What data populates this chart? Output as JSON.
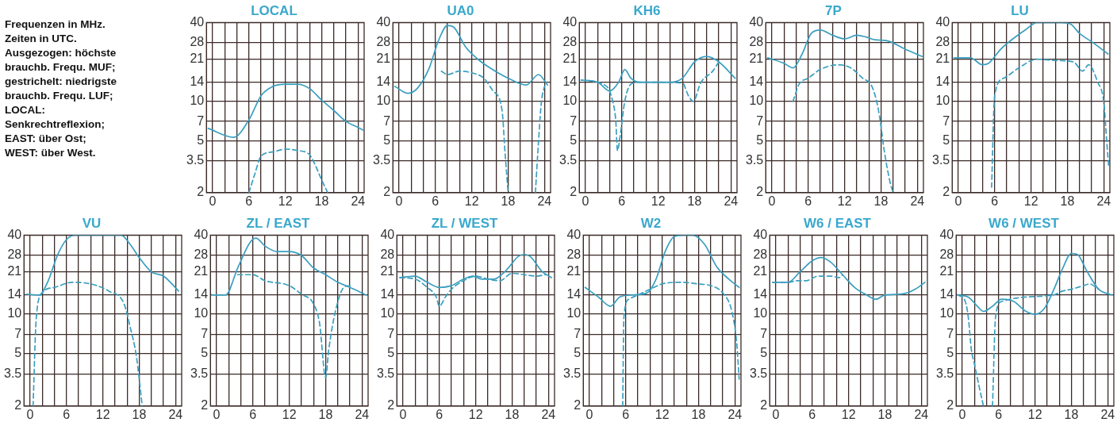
{
  "chart_data": [
    {
      "type": "other",
      "annotations": [
        "Frequenzen in MHz.",
        "Zeiten in UTC.",
        "Ausgezogen: höchste",
        "brauchb. Frequ. MUF;",
        "gestrichelt: niedrigste",
        "brauchb. Frequ. LUF;",
        "LOCAL:",
        "Senkrechtreflexion;",
        "EAST: über Ost;",
        "WEST: über West."
      ]
    },
    {
      "type": "line",
      "title": "LOCAL",
      "log": true,
      "grid": true,
      "marker": "none",
      "xlim": [
        -1,
        25
      ],
      "ylim": [
        2,
        40
      ],
      "xticks": [
        0,
        {
          "value": 2,
          "label": null
        },
        {
          "value": 4,
          "label": null
        },
        6,
        {
          "value": 8,
          "label": null
        },
        {
          "value": 10,
          "label": null
        },
        12,
        {
          "value": 14,
          "label": null
        },
        {
          "value": 16,
          "label": null
        },
        18,
        {
          "value": 20,
          "label": null
        },
        {
          "value": 22,
          "label": null
        },
        24
      ],
      "yticks": [
        2,
        3.5,
        5,
        7,
        10,
        14,
        21,
        28,
        40
      ],
      "series": [
        {
          "color": "#3a9fbf",
          "line_style": "solid",
          "x": [
            -0.7,
            3.5,
            6,
            8,
            10,
            12,
            14,
            16,
            18,
            20,
            22,
            24,
            24.9
          ],
          "values": [
            6.2,
            5.3,
            7.2,
            11,
            13,
            13.5,
            13.5,
            12.5,
            10.2,
            8.5,
            7,
            6.3,
            6
          ]
        },
        {
          "color": "#3a9fbf",
          "line_style": "dashed",
          "x": [
            6,
            7,
            8,
            10,
            12,
            14,
            16,
            17,
            18,
            19
          ],
          "values": [
            2,
            2.8,
            3.8,
            4.1,
            4.3,
            4.2,
            3.9,
            3.2,
            2.5,
            2
          ]
        }
      ]
    },
    {
      "type": "line",
      "title": "UA0",
      "log": true,
      "grid": true,
      "marker": "none",
      "xlim": [
        -1,
        25
      ],
      "ylim": [
        2,
        40
      ],
      "xticks": [
        0,
        {
          "value": 2,
          "label": null
        },
        {
          "value": 4,
          "label": null
        },
        6,
        {
          "value": 8,
          "label": null
        },
        {
          "value": 10,
          "label": null
        },
        12,
        {
          "value": 14,
          "label": null
        },
        {
          "value": 16,
          "label": null
        },
        18,
        {
          "value": 20,
          "label": null
        },
        {
          "value": 22,
          "label": null
        },
        24
      ],
      "yticks": [
        2,
        3.5,
        5,
        7,
        10,
        14,
        21,
        28,
        40
      ],
      "series": [
        {
          "color": "#3a9fbf",
          "line_style": "solid",
          "x": [
            -0.7,
            1.5,
            3,
            5,
            6.5,
            8,
            9,
            11,
            13,
            15,
            18,
            21,
            23,
            24.5
          ],
          "values": [
            13,
            11.5,
            12.5,
            18,
            29,
            38,
            37,
            26,
            21,
            18,
            15,
            13.3,
            16,
            13.3
          ]
        },
        {
          "color": "#3a9fbf",
          "line_style": "dashed",
          "x": [
            7,
            8,
            10,
            12,
            14,
            15.5,
            17,
            17.5,
            18,
            20,
            22.5,
            23,
            23.5,
            24
          ],
          "values": [
            17,
            16,
            17,
            16.5,
            15,
            12,
            8.5,
            4,
            2,
            null,
            2,
            4.8,
            10,
            13
          ]
        }
      ]
    },
    {
      "type": "line",
      "title": "KH6",
      "log": true,
      "grid": true,
      "marker": "none",
      "xlim": [
        -1,
        25
      ],
      "ylim": [
        2,
        40
      ],
      "xticks": [
        0,
        {
          "value": 2,
          "label": null
        },
        {
          "value": 4,
          "label": null
        },
        6,
        {
          "value": 8,
          "label": null
        },
        {
          "value": 10,
          "label": null
        },
        12,
        {
          "value": 14,
          "label": null
        },
        {
          "value": 16,
          "label": null
        },
        18,
        {
          "value": 20,
          "label": null
        },
        {
          "value": 22,
          "label": null
        },
        24
      ],
      "yticks": [
        2,
        3.5,
        5,
        7,
        10,
        14,
        21,
        28,
        40
      ],
      "series": [
        {
          "color": "#3a9fbf",
          "line_style": "solid",
          "x": [
            -0.7,
            2,
            4,
            5.5,
            6.5,
            7.5,
            9,
            14,
            16,
            18,
            20,
            22,
            24.7
          ],
          "values": [
            14.5,
            14,
            12,
            14,
            17.5,
            15,
            14,
            14,
            15,
            20,
            22,
            20,
            15
          ]
        },
        {
          "color": "#3a9fbf",
          "line_style": "dashed",
          "x": [
            -0.7,
            3.5,
            4.5,
            5,
            5.3,
            5.7,
            6.5,
            7.5,
            9,
            16,
            17,
            17.8,
            19,
            21,
            22
          ],
          "values": [
            14.5,
            13,
            10,
            7.2,
            4.2,
            5.3,
            10,
            13.5,
            14,
            13.8,
            11,
            10,
            13.8,
            17,
            20
          ]
        }
      ]
    },
    {
      "type": "line",
      "title": "7P",
      "log": true,
      "grid": true,
      "marker": "none",
      "xlim": [
        -1,
        25
      ],
      "ylim": [
        2,
        40
      ],
      "xticks": [
        0,
        {
          "value": 2,
          "label": null
        },
        {
          "value": 4,
          "label": null
        },
        6,
        {
          "value": 8,
          "label": null
        },
        {
          "value": 10,
          "label": null
        },
        12,
        {
          "value": 14,
          "label": null
        },
        {
          "value": 16,
          "label": null
        },
        18,
        {
          "value": 20,
          "label": null
        },
        {
          "value": 22,
          "label": null
        },
        24
      ],
      "yticks": [
        2,
        3.5,
        5,
        7,
        10,
        14,
        21,
        28,
        40
      ],
      "series": [
        {
          "color": "#3a9fbf",
          "line_style": "solid",
          "x": [
            -0.7,
            2,
            3.5,
            5,
            6.5,
            8,
            10,
            12,
            14,
            15.5,
            17,
            19,
            22,
            24.8
          ],
          "values": [
            21.5,
            19.5,
            18,
            23,
            33,
            35,
            32,
            30,
            32,
            31,
            29.5,
            29,
            25,
            22
          ]
        },
        {
          "color": "#3a9fbf",
          "line_style": "dashed",
          "x": [
            3.5,
            4.5,
            6,
            8,
            11,
            13,
            15,
            16.5,
            17.5,
            18,
            18.5,
            19.5,
            20
          ],
          "values": [
            10,
            13.5,
            15,
            17.5,
            19,
            18,
            15,
            13,
            9,
            6.4,
            4.3,
            2.4,
            2
          ]
        }
      ]
    },
    {
      "type": "line",
      "title": "LU",
      "log": true,
      "grid": true,
      "marker": "none",
      "xlim": [
        -1,
        25
      ],
      "ylim": [
        2,
        40
      ],
      "xticks": [
        0,
        {
          "value": 2,
          "label": null
        },
        {
          "value": 4,
          "label": null
        },
        6,
        {
          "value": 8,
          "label": null
        },
        {
          "value": 10,
          "label": null
        },
        12,
        {
          "value": 14,
          "label": null
        },
        {
          "value": 16,
          "label": null
        },
        18,
        {
          "value": 20,
          "label": null
        },
        {
          "value": 22,
          "label": null
        },
        24
      ],
      "yticks": [
        2,
        3.5,
        5,
        7,
        10,
        14,
        21,
        28,
        40
      ],
      "series": [
        {
          "color": "#3a9fbf",
          "line_style": "solid",
          "x": [
            -0.7,
            2,
            4,
            5,
            7,
            9,
            11,
            13,
            15,
            17,
            18.5,
            20,
            22,
            24.7
          ],
          "values": [
            21.5,
            21.5,
            19,
            19.5,
            25,
            30,
            35,
            40,
            40,
            40,
            39,
            33,
            28.5,
            23
          ]
        },
        {
          "color": "#3a9fbf",
          "line_style": "dashed",
          "x": [
            5.5,
            6,
            7.5,
            10,
            13,
            16,
            19,
            20.5,
            21.5,
            23,
            24,
            24.5,
            24.8
          ],
          "values": [
            2.2,
            11,
            15,
            18,
            21,
            20.5,
            20,
            17,
            19,
            14,
            9.8,
            4.8,
            3.2
          ]
        }
      ]
    },
    {
      "type": "line",
      "title": "VU",
      "log": true,
      "grid": true,
      "marker": "none",
      "xlim": [
        -1,
        25
      ],
      "ylim": [
        2,
        40
      ],
      "xticks": [
        0,
        {
          "value": 2,
          "label": null
        },
        {
          "value": 4,
          "label": null
        },
        6,
        {
          "value": 8,
          "label": null
        },
        {
          "value": 10,
          "label": null
        },
        12,
        {
          "value": 14,
          "label": null
        },
        {
          "value": 16,
          "label": null
        },
        18,
        {
          "value": 20,
          "label": null
        },
        {
          "value": 22,
          "label": null
        },
        24
      ],
      "yticks": [
        2,
        3.5,
        5,
        7,
        10,
        14,
        21,
        28,
        40
      ],
      "series": [
        {
          "color": "#3a9fbf",
          "line_style": "solid",
          "x": [
            -0.5,
            1.5,
            3,
            4.5,
            6,
            7.5,
            9,
            12,
            15,
            16.5,
            18,
            20,
            22,
            24.5
          ],
          "values": [
            14.2,
            14,
            18,
            28,
            37,
            40,
            40,
            40,
            40,
            34,
            27,
            21,
            19.5,
            15
          ]
        },
        {
          "color": "#3a9fbf",
          "line_style": "dashed",
          "x": [
            0.5,
            1,
            2,
            4,
            7,
            10,
            13,
            15.5,
            16.5,
            17.5,
            18.5
          ],
          "values": [
            2,
            9,
            14.5,
            16,
            17.5,
            17,
            15,
            12,
            8,
            4.9,
            2
          ]
        }
      ]
    },
    {
      "type": "line",
      "title": "ZL / EAST",
      "log": true,
      "grid": true,
      "marker": "none",
      "xlim": [
        -1,
        25
      ],
      "ylim": [
        2,
        40
      ],
      "xticks": [
        0,
        {
          "value": 2,
          "label": null
        },
        {
          "value": 4,
          "label": null
        },
        6,
        {
          "value": 8,
          "label": null
        },
        {
          "value": 10,
          "label": null
        },
        12,
        {
          "value": 14,
          "label": null
        },
        {
          "value": 16,
          "label": null
        },
        18,
        {
          "value": 20,
          "label": null
        },
        {
          "value": 22,
          "label": null
        },
        24
      ],
      "yticks": [
        2,
        3.5,
        5,
        7,
        10,
        14,
        21,
        28,
        40
      ],
      "series": [
        {
          "color": "#3a9fbf",
          "line_style": "solid",
          "x": [
            -0.7,
            1.5,
            3.5,
            5.5,
            6.5,
            8,
            10,
            12,
            14,
            16,
            18,
            20,
            22,
            24.7
          ],
          "values": [
            14,
            14,
            22.5,
            35,
            38,
            33,
            30,
            30,
            28,
            22.5,
            20,
            17.5,
            16,
            14
          ]
        },
        {
          "color": "#3a9fbf",
          "line_style": "dashed",
          "x": [
            3.5,
            6,
            8,
            12,
            14,
            16,
            17,
            18,
            18.5,
            19.5,
            21,
            22
          ],
          "values": [
            20,
            20,
            18,
            16.5,
            14.2,
            12,
            8.5,
            3.3,
            5.3,
            10,
            16,
            16.5
          ]
        }
      ]
    },
    {
      "type": "line",
      "title": "ZL / WEST",
      "log": true,
      "grid": true,
      "marker": "none",
      "xlim": [
        -1,
        25
      ],
      "ylim": [
        2,
        40
      ],
      "xticks": [
        0,
        {
          "value": 2,
          "label": null
        },
        {
          "value": 4,
          "label": null
        },
        6,
        {
          "value": 8,
          "label": null
        },
        {
          "value": 10,
          "label": null
        },
        12,
        {
          "value": 14,
          "label": null
        },
        {
          "value": 16,
          "label": null
        },
        18,
        {
          "value": 20,
          "label": null
        },
        {
          "value": 22,
          "label": null
        },
        24
      ],
      "yticks": [
        2,
        3.5,
        5,
        7,
        10,
        14,
        21,
        28,
        40
      ],
      "series": [
        {
          "color": "#3a9fbf",
          "line_style": "solid",
          "x": [
            -0.5,
            2,
            4,
            6,
            8,
            10,
            11.5,
            13,
            15,
            17,
            19,
            20,
            21,
            23,
            24.5
          ],
          "values": [
            19,
            19.5,
            17.5,
            16,
            16.5,
            18.5,
            19.5,
            18.5,
            18.5,
            21.5,
            27.5,
            28.5,
            27.5,
            21,
            19
          ]
        },
        {
          "color": "#3a9fbf",
          "line_style": "dashed",
          "x": [
            -0.5,
            2,
            4,
            5.5,
            6,
            7,
            8,
            10,
            12,
            14,
            16,
            18,
            20,
            22,
            23.5
          ],
          "values": [
            19,
            18.5,
            16,
            13.5,
            11.5,
            13.5,
            15.5,
            18,
            19.5,
            18.5,
            18,
            20.5,
            20,
            19.5,
            20
          ]
        }
      ]
    },
    {
      "type": "line",
      "title": "W2",
      "log": true,
      "grid": true,
      "marker": "none",
      "xlim": [
        -1,
        25
      ],
      "ylim": [
        2,
        40
      ],
      "xticks": [
        0,
        {
          "value": 2,
          "label": null
        },
        {
          "value": 4,
          "label": null
        },
        6,
        {
          "value": 8,
          "label": null
        },
        {
          "value": 10,
          "label": null
        },
        12,
        {
          "value": 14,
          "label": null
        },
        {
          "value": 16,
          "label": null
        },
        18,
        {
          "value": 20,
          "label": null
        },
        {
          "value": 22,
          "label": null
        },
        24
      ],
      "yticks": [
        2,
        3.5,
        5,
        7,
        10,
        14,
        21,
        28,
        40
      ],
      "series": [
        {
          "color": "#3a9fbf",
          "line_style": "solid",
          "x": [
            -0.7,
            1.5,
            3.5,
            5,
            7,
            9.5,
            11,
            12.5,
            14,
            15.5,
            17,
            19,
            21,
            23,
            24.7
          ],
          "values": [
            16,
            13.5,
            11.5,
            13.5,
            14,
            14.5,
            18.5,
            30,
            39,
            40,
            40,
            34,
            23,
            18.5,
            16
          ]
        },
        {
          "color": "#3a9fbf",
          "line_style": "dashed",
          "x": [
            5.5,
            5.7,
            6.5,
            8,
            10,
            12,
            15,
            18,
            20,
            22,
            23.5,
            24.3,
            24.7
          ],
          "values": [
            2,
            9.5,
            13,
            14,
            15.5,
            17,
            17.5,
            17,
            16.5,
            14.5,
            10.5,
            6,
            3.2
          ]
        }
      ]
    },
    {
      "type": "line",
      "title": "W6 / EAST",
      "log": true,
      "grid": true,
      "marker": "none",
      "xlim": [
        -1,
        25
      ],
      "ylim": [
        2,
        40
      ],
      "xticks": [
        0,
        {
          "value": 2,
          "label": null
        },
        {
          "value": 4,
          "label": null
        },
        6,
        {
          "value": 8,
          "label": null
        },
        {
          "value": 10,
          "label": null
        },
        12,
        {
          "value": 14,
          "label": null
        },
        {
          "value": 16,
          "label": null
        },
        18,
        {
          "value": 20,
          "label": null
        },
        {
          "value": 22,
          "label": null
        },
        24
      ],
      "yticks": [
        2,
        3.5,
        5,
        7,
        10,
        14,
        21,
        28,
        40
      ],
      "series": [
        {
          "color": "#3a9fbf",
          "line_style": "solid",
          "x": [
            -0.5,
            2,
            4,
            6,
            7.5,
            9,
            11,
            13,
            15,
            16.5,
            18,
            21,
            23,
            24.6
          ],
          "values": [
            17.5,
            17.5,
            21,
            25.5,
            27,
            25,
            20,
            16,
            14,
            13,
            14,
            14.3,
            15.5,
            17.5
          ]
        },
        {
          "color": "#3a9fbf",
          "line_style": "dashed",
          "x": [
            -0.5,
            2,
            3.5,
            5,
            7,
            9,
            10.5,
            11
          ],
          "values": [
            17.5,
            17.5,
            18,
            18,
            19.5,
            19.5,
            19,
            20
          ]
        }
      ]
    },
    {
      "type": "line",
      "title": "W6 / WEST",
      "log": true,
      "grid": true,
      "marker": "none",
      "xlim": [
        -1,
        25
      ],
      "ylim": [
        2,
        40
      ],
      "xticks": [
        0,
        {
          "value": 2,
          "label": null
        },
        {
          "value": 4,
          "label": null
        },
        6,
        {
          "value": 8,
          "label": null
        },
        {
          "value": 10,
          "label": null
        },
        12,
        {
          "value": 14,
          "label": null
        },
        {
          "value": 16,
          "label": null
        },
        18,
        {
          "value": 20,
          "label": null
        },
        {
          "value": 22,
          "label": null
        },
        24
      ],
      "yticks": [
        2,
        3.5,
        5,
        7,
        10,
        14,
        21,
        28,
        40
      ],
      "series": [
        {
          "color": "#3a9fbf",
          "line_style": "solid",
          "x": [
            -0.7,
            1,
            2.5,
            3.5,
            5,
            6.5,
            8.5,
            10.5,
            12,
            13.5,
            15,
            16.5,
            18,
            19,
            20.5,
            22.5,
            24.7
          ],
          "values": [
            14,
            13.5,
            11.5,
            10.5,
            11.5,
            13,
            12.5,
            10.5,
            10,
            11,
            15,
            22,
            29,
            28.5,
            21.5,
            15.5,
            14
          ]
        },
        {
          "color": "#3a9fbf",
          "line_style": "dashed",
          "x": [
            -0.7,
            0.5,
            1,
            1.5,
            2,
            2.8,
            3.5,
            4.2,
            5,
            5.5,
            6.5,
            15,
            16.5,
            18,
            20,
            21,
            22.5
          ],
          "values": [
            14,
            12.5,
            9.5,
            5.4,
            4.2,
            2.8,
            2,
            null,
            2,
            9.5,
            12.5,
            14,
            15,
            15.5,
            16.5,
            17,
            15.5
          ]
        }
      ]
    }
  ]
}
